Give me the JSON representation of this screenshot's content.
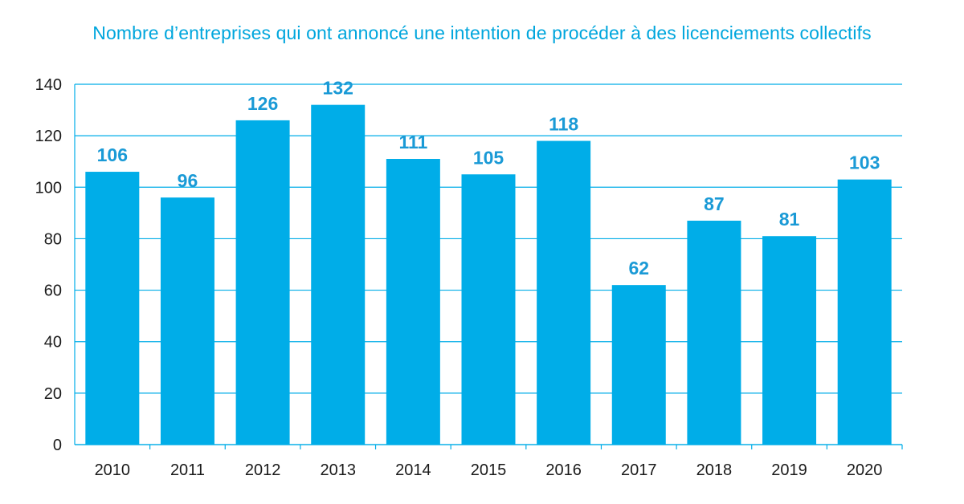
{
  "chart_data": {
    "type": "bar",
    "title": "Nombre d’entreprises qui ont annoncé une intention de procéder à des licenciements collectifs",
    "xlabel": "",
    "ylabel": "",
    "categories": [
      "2010",
      "2011",
      "2012",
      "2013",
      "2014",
      "2015",
      "2016",
      "2017",
      "2018",
      "2019",
      "2020"
    ],
    "values": [
      106,
      96,
      126,
      132,
      111,
      105,
      118,
      62,
      87,
      81,
      103
    ],
    "ylim": [
      0,
      140
    ],
    "yticks": [
      0,
      20,
      40,
      60,
      80,
      100,
      120,
      140
    ],
    "grid": true,
    "data_labels": true,
    "bar_color": "#00ade8",
    "label_color": "#1a9ad6",
    "grid_color": "#00ade8"
  }
}
